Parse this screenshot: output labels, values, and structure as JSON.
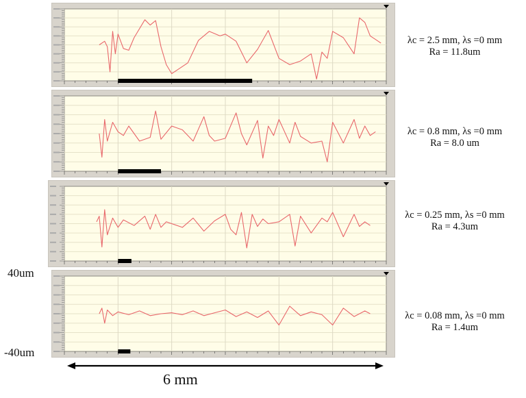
{
  "figure": {
    "y_top_label": "40um",
    "y_bottom_label": "-40um",
    "scale_label": "6 mm",
    "trace_color": "#e8666a",
    "plot_bg": "#fffde8",
    "frame_color": "#d8d4cc"
  },
  "panels": [
    {
      "line1": "λc = 2.5 mm, λs =0 mm",
      "line2": "Ra = 11.8um",
      "cutoff_bar_mm": 2.5
    },
    {
      "line1": "λc = 0.8 mm, λs =0 mm",
      "line2": "Ra = 8.0 um",
      "cutoff_bar_mm": 0.8
    },
    {
      "line1": "λc = 0.25 mm, λs =0 mm",
      "line2": "Ra = 4.3um",
      "cutoff_bar_mm": 0.25
    },
    {
      "line1": "λc = 0.08 mm, λs =0 mm",
      "line2": "Ra = 1.4um",
      "cutoff_bar_mm": 0.08
    }
  ],
  "chart_data": [
    {
      "type": "line",
      "title": "λc = 2.5 mm, λs =0 mm, Ra = 11.8um",
      "xlabel": "mm",
      "ylabel": "um",
      "xlim": [
        0,
        6
      ],
      "ylim": [
        -40,
        40
      ],
      "x": [
        0.65,
        0.75,
        0.8,
        0.85,
        0.9,
        0.95,
        1.0,
        1.1,
        1.2,
        1.3,
        1.5,
        1.6,
        1.7,
        1.8,
        1.9,
        2.0,
        2.1,
        2.3,
        2.5,
        2.7,
        2.9,
        3.0,
        3.2,
        3.4,
        3.6,
        3.8,
        4.0,
        4.2,
        4.4,
        4.6,
        4.7,
        4.8,
        4.9,
        5.0,
        5.2,
        5.4,
        5.5,
        5.6,
        5.7,
        5.8,
        5.9
      ],
      "values": [
        0,
        4,
        -2,
        -30,
        15,
        -10,
        12,
        -4,
        -6,
        8,
        28,
        22,
        27,
        -2,
        -22,
        -32,
        -28,
        -20,
        5,
        15,
        10,
        12,
        4,
        -20,
        -5,
        16,
        -15,
        -22,
        -18,
        -10,
        -38,
        -8,
        -15,
        15,
        8,
        -10,
        30,
        25,
        10,
        6,
        2
      ],
      "grid": true
    },
    {
      "type": "line",
      "title": "λc = 0.8 mm, λs =0 mm, Ra = 8.0 um",
      "xlabel": "mm",
      "ylabel": "um",
      "xlim": [
        0,
        6
      ],
      "ylim": [
        -40,
        40
      ],
      "x": [
        0.65,
        0.7,
        0.75,
        0.8,
        0.9,
        1.0,
        1.1,
        1.2,
        1.4,
        1.6,
        1.7,
        1.8,
        2.0,
        2.2,
        2.4,
        2.6,
        2.7,
        2.8,
        3.0,
        3.2,
        3.3,
        3.4,
        3.6,
        3.7,
        3.8,
        3.9,
        4.0,
        4.2,
        4.3,
        4.4,
        4.6,
        4.8,
        4.9,
        5.0,
        5.2,
        5.4,
        5.5,
        5.6,
        5.7,
        5.8
      ],
      "values": [
        0,
        -25,
        15,
        -8,
        12,
        2,
        -2,
        8,
        -8,
        -4,
        24,
        -6,
        8,
        4,
        -8,
        18,
        -2,
        -8,
        -5,
        22,
        0,
        -12,
        14,
        -26,
        8,
        -2,
        15,
        -10,
        12,
        -3,
        -10,
        -8,
        -30,
        12,
        -10,
        15,
        -5,
        8,
        -2,
        2
      ],
      "grid": true
    },
    {
      "type": "line",
      "title": "λc = 0.25 mm, λs =0 mm, Ra = 4.3um",
      "xlabel": "mm",
      "ylabel": "um",
      "xlim": [
        0,
        6
      ],
      "ylim": [
        -40,
        40
      ],
      "x": [
        0.6,
        0.65,
        0.7,
        0.75,
        0.8,
        0.9,
        1.0,
        1.1,
        1.3,
        1.5,
        1.6,
        1.7,
        1.8,
        1.9,
        2.0,
        2.2,
        2.4,
        2.6,
        2.8,
        3.0,
        3.1,
        3.2,
        3.3,
        3.4,
        3.5,
        3.6,
        3.7,
        3.8,
        4.0,
        4.2,
        4.3,
        4.4,
        4.6,
        4.8,
        4.9,
        5.0,
        5.2,
        5.4,
        5.5,
        5.6,
        5.7
      ],
      "values": [
        2,
        8,
        -25,
        15,
        -12,
        6,
        -4,
        4,
        -2,
        8,
        -6,
        10,
        -4,
        2,
        0,
        -4,
        6,
        -8,
        3,
        10,
        -6,
        -12,
        12,
        -26,
        10,
        -3,
        5,
        0,
        2,
        10,
        -24,
        8,
        -10,
        6,
        2,
        12,
        -14,
        10,
        -3,
        2,
        -2
      ],
      "grid": true
    },
    {
      "type": "line",
      "title": "λc = 0.08 mm, λs =0 mm, Ra = 1.4um",
      "xlabel": "mm",
      "ylabel": "um",
      "xlim": [
        0,
        6
      ],
      "ylim": [
        -40,
        40
      ],
      "x": [
        0.65,
        0.7,
        0.75,
        0.8,
        0.9,
        1.0,
        1.2,
        1.4,
        1.6,
        1.8,
        2.0,
        2.2,
        2.4,
        2.6,
        2.8,
        3.0,
        3.2,
        3.4,
        3.6,
        3.8,
        4.0,
        4.2,
        4.4,
        4.6,
        4.8,
        5.0,
        5.2,
        5.4,
        5.6,
        5.7
      ],
      "values": [
        0,
        6,
        -10,
        4,
        -2,
        2,
        -1,
        3,
        -2,
        0,
        1,
        -1,
        3,
        -2,
        1,
        4,
        -3,
        2,
        -4,
        3,
        -12,
        8,
        -2,
        2,
        -1,
        -12,
        6,
        -3,
        3,
        0
      ],
      "grid": true
    }
  ]
}
